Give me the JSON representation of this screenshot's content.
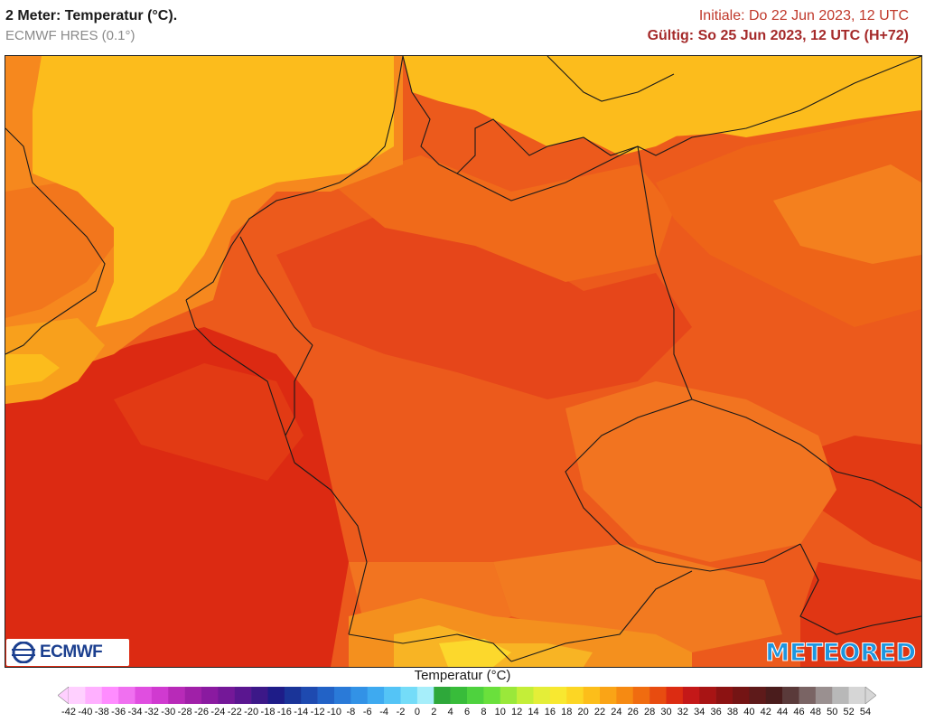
{
  "header": {
    "title": "2 Meter: Temperatur (°C).",
    "model": "ECMWF HRES (0.1°)",
    "init": "Initiale: Do 22 Jun 2023, 12 UTC",
    "valid": "Gültig: So 25 Jun 2023, 12 UTC (H+72)"
  },
  "logos": {
    "ecmwf": "ECMWF",
    "meteored": "METEORED"
  },
  "legend": {
    "title": "Temperatur (°C)",
    "ticks": [
      "-42",
      "-40",
      "-38",
      "-36",
      "-34",
      "-32",
      "-30",
      "-28",
      "-26",
      "-24",
      "-22",
      "-20",
      "-18",
      "-16",
      "-14",
      "-12",
      "-10",
      "-8",
      "-6",
      "-4",
      "-2",
      "0",
      "2",
      "4",
      "6",
      "8",
      "10",
      "12",
      "14",
      "16",
      "18",
      "20",
      "22",
      "24",
      "26",
      "28",
      "30",
      "32",
      "34",
      "36",
      "38",
      "40",
      "42",
      "44",
      "46",
      "48",
      "50",
      "52",
      "54"
    ],
    "colors": [
      "#ffd0ff",
      "#ffb0ff",
      "#ff8cff",
      "#f070f0",
      "#e04ee0",
      "#d03ad0",
      "#b82ab8",
      "#a020a8",
      "#8a1aa0",
      "#741898",
      "#5a1690",
      "#3c1888",
      "#1e1c88",
      "#1a3498",
      "#1e4ab0",
      "#2262c6",
      "#2a7ad8",
      "#3292e6",
      "#3eaaf0",
      "#54c4f6",
      "#74dcf8",
      "#a6eefa",
      "#2ea83a",
      "#38bc3a",
      "#4ed23e",
      "#6ae03c",
      "#9ae83a",
      "#c4ee38",
      "#e4ee38",
      "#f8e830",
      "#fcd624",
      "#fcbe1a",
      "#faa416",
      "#f68a12",
      "#f06c10",
      "#e84c10",
      "#dc2c12",
      "#c41818",
      "#a81414",
      "#8c1212",
      "#741414",
      "#5e1a1a",
      "#4a1c1c",
      "#5a3a3a",
      "#7a6464",
      "#9a9090",
      "#b8b8b8",
      "#d6d6d6"
    ]
  }
}
